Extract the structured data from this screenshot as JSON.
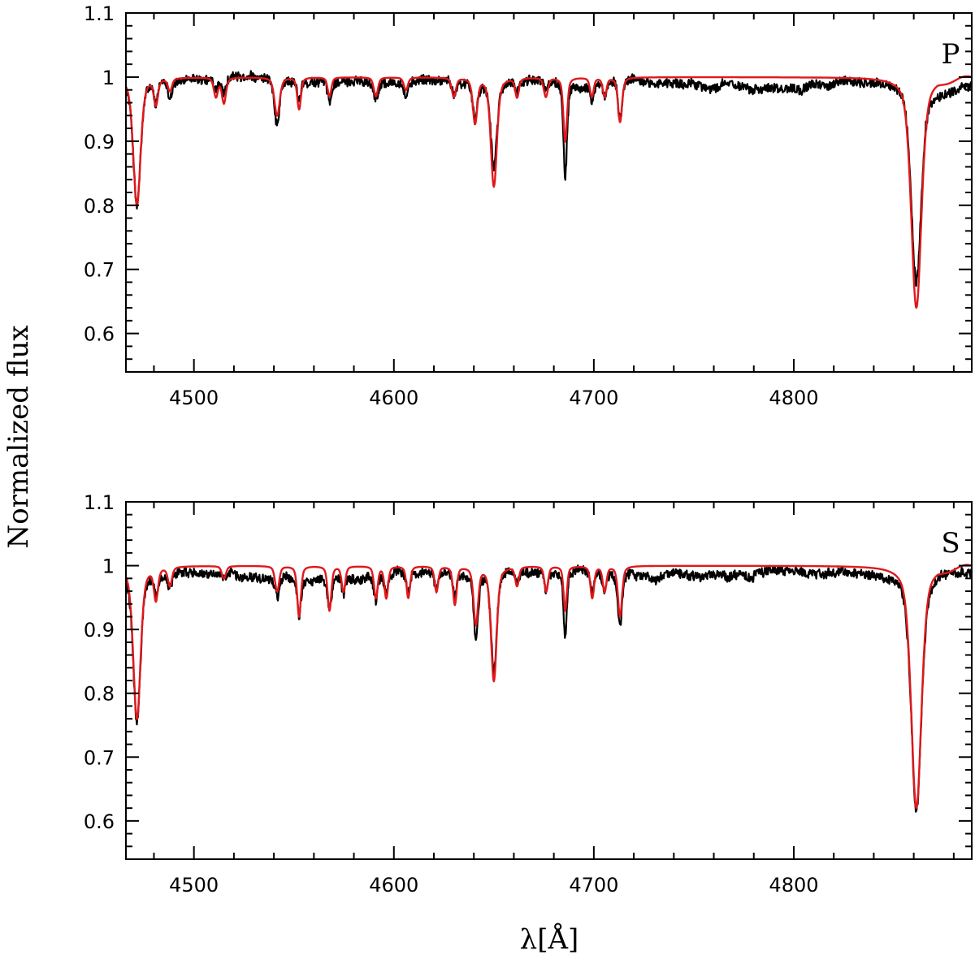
{
  "chart_data": {
    "type": "line",
    "shared_xlabel": "λ[Å]",
    "shared_ylabel": "Normalized flux",
    "colors": {
      "observed": "#000000",
      "model": "#e0181c"
    },
    "panels": [
      {
        "label": "P",
        "xlim": [
          4466,
          4889
        ],
        "ylim": [
          0.54,
          1.1
        ],
        "x_major_ticks": [
          4500,
          4600,
          4700,
          4800
        ],
        "x_minor_step": 20,
        "y_major_ticks": [
          0.6,
          0.7,
          0.8,
          0.9,
          1,
          1.1
        ],
        "y_tick_labels": [
          "0.6",
          "0.7",
          "0.8",
          "0.9",
          "1",
          "1.1"
        ],
        "y_minor_step": 0.02,
        "continuum": 0.995,
        "lines": [
          {
            "x": 4471.5,
            "obs_min": 0.8,
            "model_min": 0.8,
            "width": 1.8
          },
          {
            "x": 4481.0,
            "obs_min": 0.96,
            "model_min": 0.96,
            "width": 1.0
          },
          {
            "x": 4488.0,
            "obs_min": 0.97,
            "model_min": 0.98,
            "width": 1.0
          },
          {
            "x": 4511.0,
            "obs_min": 0.98,
            "model_min": 0.97,
            "width": 1.0
          },
          {
            "x": 4515.0,
            "obs_min": 0.97,
            "model_min": 0.96,
            "width": 1.0
          },
          {
            "x": 4541.6,
            "obs_min": 0.92,
            "model_min": 0.94,
            "width": 1.3
          },
          {
            "x": 4552.6,
            "obs_min": 0.96,
            "model_min": 0.95,
            "width": 0.9
          },
          {
            "x": 4567.8,
            "obs_min": 0.96,
            "model_min": 0.97,
            "width": 0.9
          },
          {
            "x": 4591.0,
            "obs_min": 0.97,
            "model_min": 0.97,
            "width": 1.0
          },
          {
            "x": 4606.0,
            "obs_min": 0.97,
            "model_min": 0.98,
            "width": 1.0
          },
          {
            "x": 4630.0,
            "obs_min": 0.97,
            "model_min": 0.97,
            "width": 1.0
          },
          {
            "x": 4640.6,
            "obs_min": 0.94,
            "model_min": 0.93,
            "width": 1.1
          },
          {
            "x": 4650.0,
            "obs_min": 0.86,
            "model_min": 0.83,
            "width": 1.5
          },
          {
            "x": 4661.6,
            "obs_min": 0.98,
            "model_min": 0.97,
            "width": 0.9
          },
          {
            "x": 4676.0,
            "obs_min": 0.98,
            "model_min": 0.97,
            "width": 1.0
          },
          {
            "x": 4685.7,
            "obs_min": 0.85,
            "model_min": 0.9,
            "width": 0.9
          },
          {
            "x": 4699.0,
            "obs_min": 0.97,
            "model_min": 0.97,
            "width": 0.9
          },
          {
            "x": 4705.4,
            "obs_min": 0.97,
            "model_min": 0.97,
            "width": 0.9
          },
          {
            "x": 4713.1,
            "obs_min": 0.93,
            "model_min": 0.93,
            "width": 1.0
          },
          {
            "x": 4861.3,
            "obs_min": 0.68,
            "model_min": 0.64,
            "width": 2.5
          }
        ]
      },
      {
        "label": "S",
        "xlim": [
          4466,
          4889
        ],
        "ylim": [
          0.54,
          1.1
        ],
        "x_major_ticks": [
          4500,
          4600,
          4700,
          4800
        ],
        "x_minor_step": 20,
        "y_major_ticks": [
          0.6,
          0.7,
          0.8,
          0.9,
          1,
          1.1
        ],
        "y_tick_labels": [
          "0.6",
          "0.7",
          "0.8",
          "0.9",
          "1",
          "1.1"
        ],
        "y_minor_step": 0.02,
        "continuum": 0.99,
        "lines": [
          {
            "x": 4471.5,
            "obs_min": 0.75,
            "model_min": 0.76,
            "width": 1.8
          },
          {
            "x": 4481.0,
            "obs_min": 0.96,
            "model_min": 0.95,
            "width": 1.0
          },
          {
            "x": 4488.0,
            "obs_min": 0.97,
            "model_min": 0.97,
            "width": 1.0
          },
          {
            "x": 4515.0,
            "obs_min": 0.98,
            "model_min": 0.98,
            "width": 1.0
          },
          {
            "x": 4541.6,
            "obs_min": 0.96,
            "model_min": 0.96,
            "width": 1.0
          },
          {
            "x": 4552.6,
            "obs_min": 0.93,
            "model_min": 0.92,
            "width": 0.9
          },
          {
            "x": 4567.8,
            "obs_min": 0.94,
            "model_min": 0.93,
            "width": 0.9
          },
          {
            "x": 4574.8,
            "obs_min": 0.96,
            "model_min": 0.96,
            "width": 0.9
          },
          {
            "x": 4591.0,
            "obs_min": 0.95,
            "model_min": 0.95,
            "width": 0.9
          },
          {
            "x": 4596.2,
            "obs_min": 0.96,
            "model_min": 0.95,
            "width": 0.9
          },
          {
            "x": 4607.2,
            "obs_min": 0.96,
            "model_min": 0.95,
            "width": 0.9
          },
          {
            "x": 4621.3,
            "obs_min": 0.96,
            "model_min": 0.96,
            "width": 0.9
          },
          {
            "x": 4630.5,
            "obs_min": 0.95,
            "model_min": 0.94,
            "width": 0.9
          },
          {
            "x": 4641.0,
            "obs_min": 0.89,
            "model_min": 0.91,
            "width": 1.1
          },
          {
            "x": 4650.0,
            "obs_min": 0.83,
            "model_min": 0.82,
            "width": 1.4
          },
          {
            "x": 4661.6,
            "obs_min": 0.97,
            "model_min": 0.97,
            "width": 0.9
          },
          {
            "x": 4676.2,
            "obs_min": 0.96,
            "model_min": 0.96,
            "width": 0.9
          },
          {
            "x": 4685.7,
            "obs_min": 0.89,
            "model_min": 0.93,
            "width": 0.8
          },
          {
            "x": 4699.2,
            "obs_min": 0.96,
            "model_min": 0.95,
            "width": 0.9
          },
          {
            "x": 4705.4,
            "obs_min": 0.96,
            "model_min": 0.96,
            "width": 0.9
          },
          {
            "x": 4713.1,
            "obs_min": 0.91,
            "model_min": 0.92,
            "width": 1.0
          },
          {
            "x": 4861.3,
            "obs_min": 0.62,
            "model_min": 0.62,
            "width": 2.5
          }
        ]
      }
    ]
  }
}
